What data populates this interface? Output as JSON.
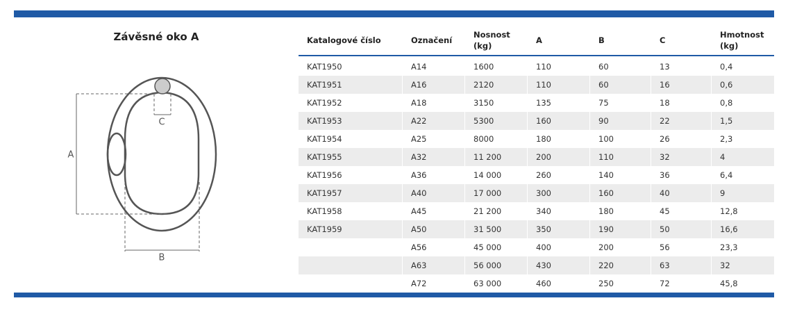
{
  "title": "Závěsné oko A",
  "diagram": {
    "labels": [
      "A",
      "B",
      "C"
    ]
  },
  "table": {
    "header": [
      [
        "Katalogové číslo"
      ],
      [
        "Označení"
      ],
      [
        "Nosnost",
        "(kg)"
      ],
      [
        "A"
      ],
      [
        "B"
      ],
      [
        "C"
      ],
      [
        "Hmotnost",
        "(kg)"
      ]
    ],
    "rows": [
      [
        "KAT1950",
        "A14",
        "1600",
        "110",
        "60",
        "13",
        "0,4"
      ],
      [
        "KAT1951",
        "A16",
        "2120",
        "110",
        "60",
        "16",
        "0,6"
      ],
      [
        "KAT1952",
        "A18",
        "3150",
        "135",
        "75",
        "18",
        "0,8"
      ],
      [
        "KAT1953",
        "A22",
        "5300",
        "160",
        "90",
        "22",
        "1,5"
      ],
      [
        "KAT1954",
        "A25",
        "8000",
        "180",
        "100",
        "26",
        "2,3"
      ],
      [
        "KAT1955",
        "A32",
        "11 200",
        "200",
        "110",
        "32",
        "4"
      ],
      [
        "KAT1956",
        "A36",
        "14 000",
        "260",
        "140",
        "36",
        "6,4"
      ],
      [
        "KAT1957",
        "A40",
        "17 000",
        "300",
        "160",
        "40",
        "9"
      ],
      [
        "KAT1958",
        "A45",
        "21 200",
        "340",
        "180",
        "45",
        "12,8"
      ],
      [
        "KAT1959",
        "A50",
        "31 500",
        "350",
        "190",
        "50",
        "16,6"
      ],
      [
        null,
        "A56",
        "45 000",
        "400",
        "200",
        "56",
        "23,3"
      ],
      [
        null,
        "A63",
        "56 000",
        "430",
        "220",
        "63",
        "32"
      ],
      [
        null,
        "A72",
        "63 000",
        "460",
        "250",
        "72",
        "45,8"
      ]
    ]
  }
}
